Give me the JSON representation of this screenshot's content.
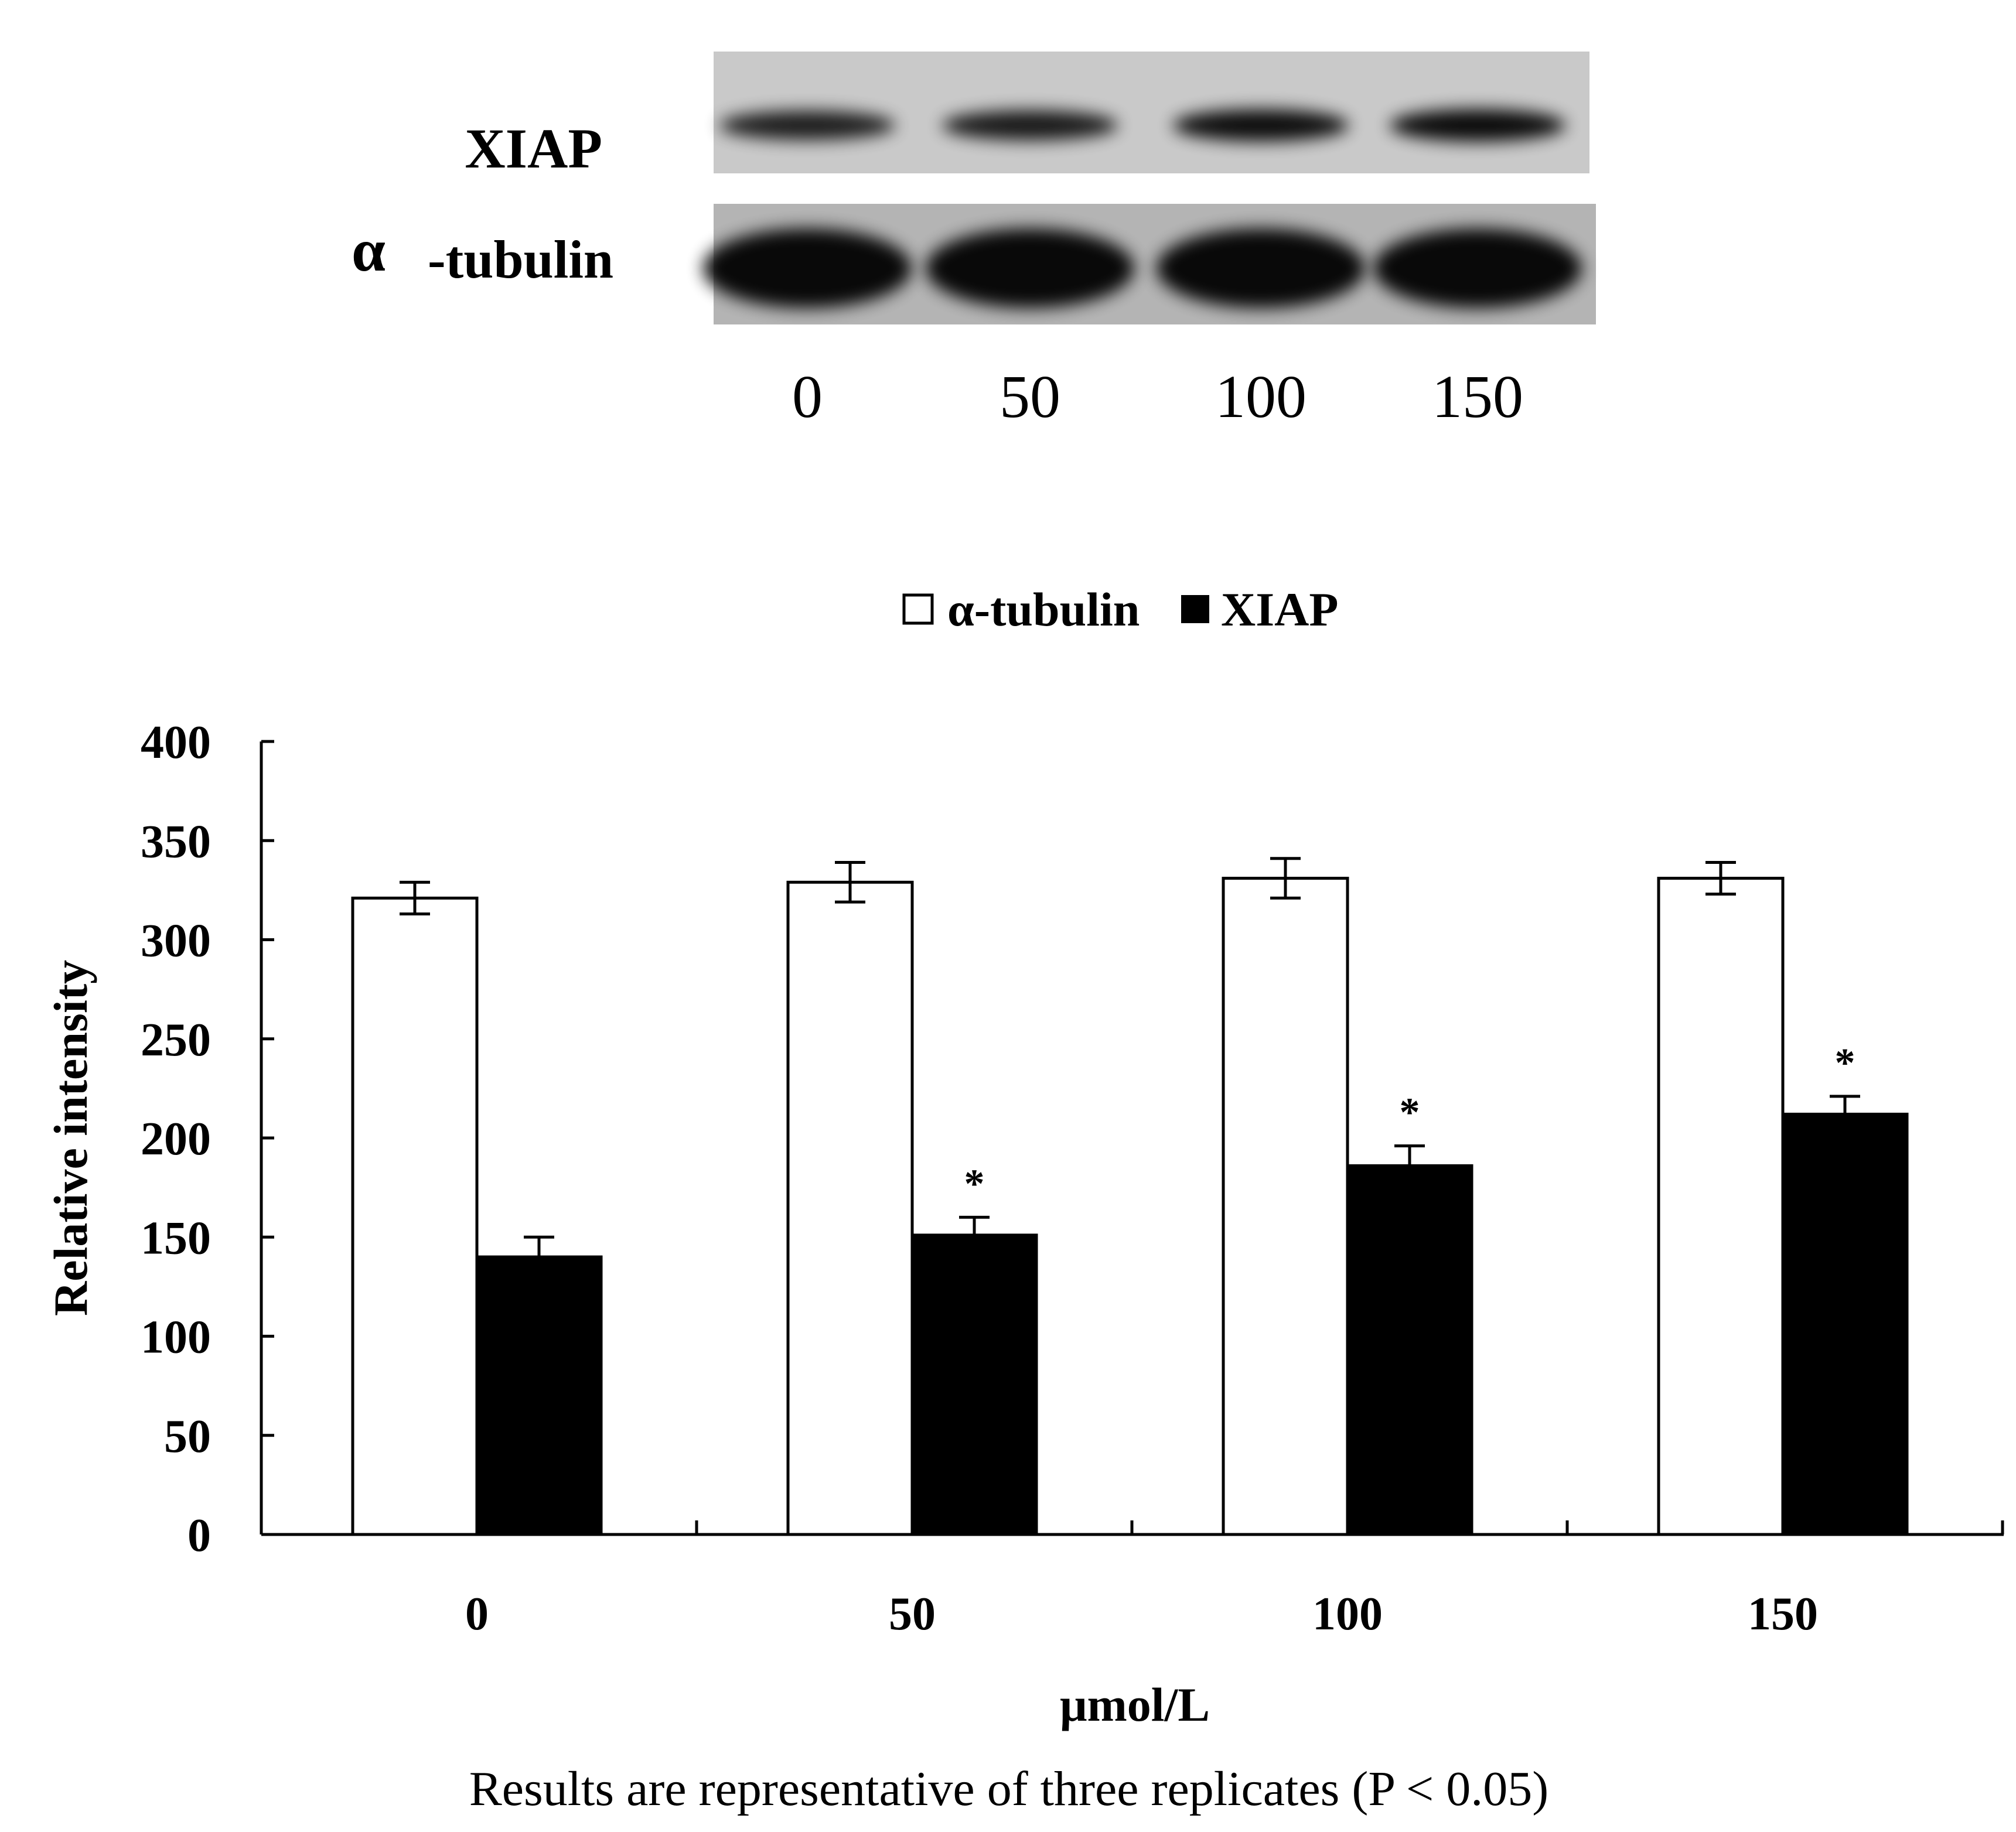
{
  "blot": {
    "rows": [
      "XIAP",
      "-tubulin"
    ],
    "alpha_glyph": "α",
    "lanes": [
      "0",
      "50",
      "100",
      "150"
    ],
    "xiap_band_intensity": [
      0.75,
      0.8,
      0.95,
      0.98
    ],
    "tubulin_band_intensity": [
      1.0,
      1.0,
      1.0,
      1.0
    ]
  },
  "chart_data": {
    "type": "bar",
    "categories": [
      "0",
      "50",
      "100",
      "150"
    ],
    "xlabel": "μmol/L",
    "ylabel": "Relative intensity",
    "ylim": [
      0,
      400
    ],
    "yticks": [
      0,
      50,
      100,
      150,
      200,
      250,
      300,
      350,
      400
    ],
    "grid": false,
    "legend_position": "top-center",
    "series": [
      {
        "name": "α-tubulin",
        "color": "#ffffff",
        "values": [
          321,
          329,
          331,
          331
        ],
        "errors": [
          8,
          10,
          10,
          8
        ],
        "significant": [
          false,
          false,
          false,
          false
        ]
      },
      {
        "name": "XIAP",
        "color": "#000000",
        "values": [
          140,
          151,
          186,
          212
        ],
        "errors": [
          10,
          9,
          10,
          9
        ],
        "significant": [
          false,
          true,
          true,
          true
        ]
      }
    ],
    "significance_marker": "*"
  },
  "caption": "Results are representative of three replicates (P < 0.05)"
}
